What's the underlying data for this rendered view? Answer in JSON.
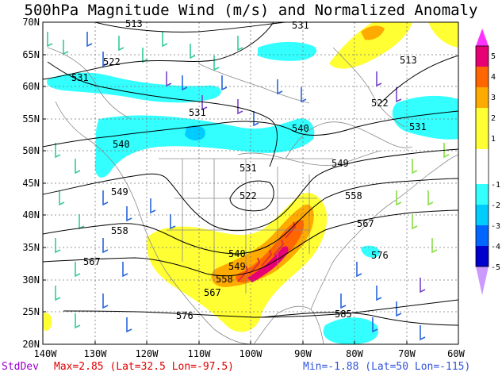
{
  "title": "500hPa Magnitude Wind (m/s) and Normalized Anomaly",
  "lat_labels": [
    "70N",
    "65N",
    "60N",
    "55N",
    "50N",
    "45N",
    "40N",
    "35N",
    "30N",
    "25N",
    "20N"
  ],
  "lon_labels": [
    "140W",
    "130W",
    "120W",
    "110W",
    "100W",
    "90W",
    "80W",
    "70W",
    "60W"
  ],
  "contour_labels": [
    "513",
    "531",
    "522",
    "531",
    "531",
    "540",
    "540",
    "549",
    "531",
    "522",
    "549",
    "558",
    "558",
    "567",
    "567",
    "549",
    "540",
    "558",
    "567",
    "576",
    "576",
    "585",
    "513",
    "522",
    "531"
  ],
  "colorbar": {
    "tick_labels": [
      "5",
      "4",
      "3",
      "2",
      "1",
      "-1",
      "-2",
      "-3",
      "-4",
      "-5"
    ],
    "colors": [
      "#ff33ff",
      "#e60073",
      "#ff6600",
      "#ffaa00",
      "#ffff33",
      "#33ffff",
      "#00ccff",
      "#0066ff",
      "#0000cc",
      "#6633cc",
      "#cc99ff"
    ]
  },
  "footer": {
    "stat_label": "StdDev",
    "max_text": "Max=2.85 (Lat=32.5 Lon=-97.5)",
    "min_text": "Min=-1.88 (Lat=50 Lon=-115)"
  },
  "colors": {
    "max": "#e00000",
    "min": "#3355dd",
    "stat": "#9900cc"
  }
}
